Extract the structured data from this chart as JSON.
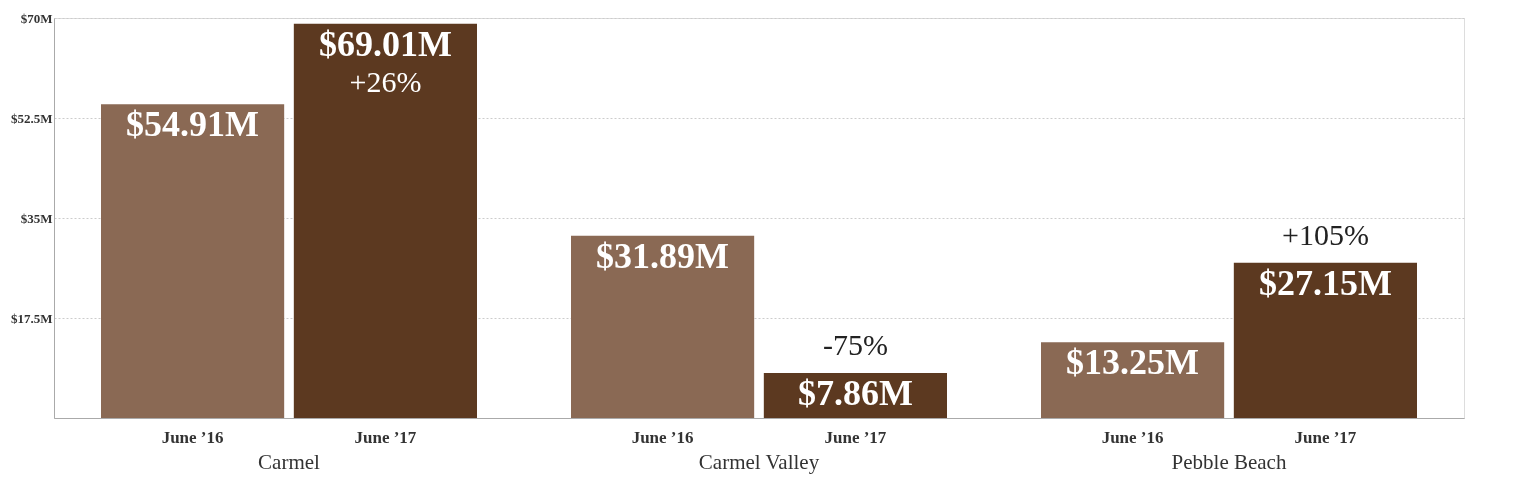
{
  "chart_data": {
    "type": "bar",
    "categories": [
      "Carmel",
      "Carmel Valley",
      "Pebble Beach"
    ],
    "series": [
      {
        "name": "June ’16",
        "color": "#8a6954",
        "values": [
          54.91,
          31.89,
          13.25
        ],
        "value_labels": [
          "$54.91M",
          "$31.89M",
          "$13.25M"
        ]
      },
      {
        "name": "June ’17",
        "color": "#5c3920",
        "values": [
          69.01,
          7.86,
          27.15
        ],
        "value_labels": [
          "$69.01M",
          "$7.86M",
          "$27.15M"
        ]
      }
    ],
    "ylim": [
      0,
      70
    ],
    "yticks": [
      {
        "value": 0,
        "label": null
      },
      {
        "value": 17.5,
        "label": "$17.5M"
      },
      {
        "value": 35,
        "label": "$35M"
      },
      {
        "value": 52.5,
        "label": "$52.5M"
      },
      {
        "value": 70,
        "label": "$70M"
      }
    ],
    "grid": "y",
    "legend": false,
    "annotations": [
      {
        "text": "+26%",
        "x": "Carmel",
        "y": 69.01
      },
      {
        "text": "-75%",
        "x": "Carmel Valley",
        "y": 7.86
      },
      {
        "text": "+105%",
        "x": "Pebble Beach",
        "y": 27.15
      }
    ]
  }
}
